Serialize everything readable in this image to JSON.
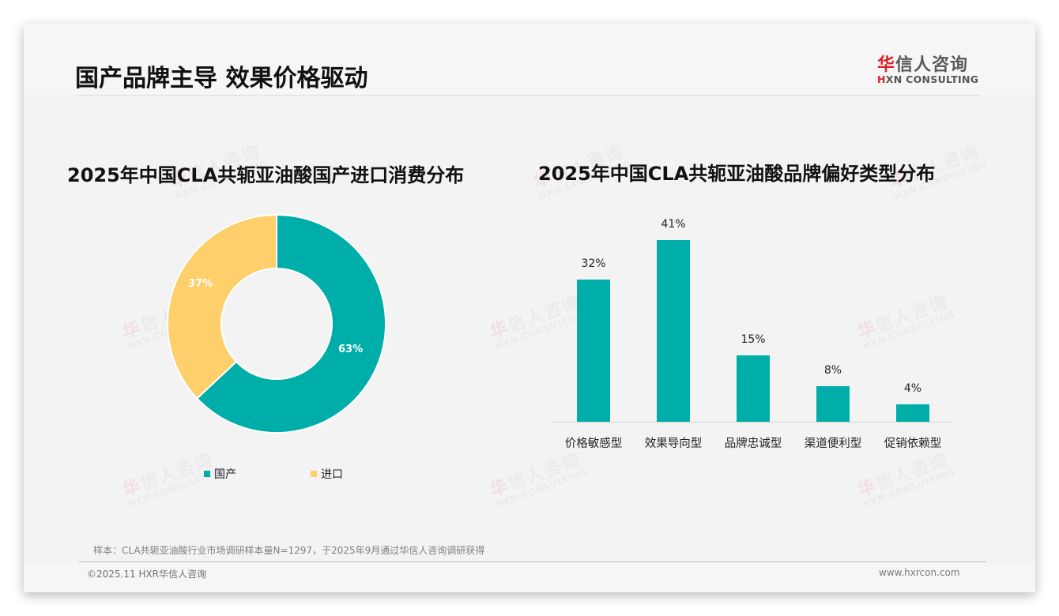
{
  "header": {
    "title": "国产品牌主导 效果价格驱动",
    "logo": {
      "cn_first": "华",
      "cn_rest": "信人咨询",
      "en_first": "H",
      "en_rest": "XN CONSULTING"
    }
  },
  "watermark": {
    "cn_first": "华",
    "cn_rest": "信人咨询",
    "en": "HXN CONSULTING"
  },
  "colors": {
    "teal": "#00aea9",
    "yellow": "#fecf6a",
    "logo_red": "#d9232a"
  },
  "chart_data": [
    {
      "type": "pie",
      "title": "2025年中国CLA共轭亚油酸国产进口消费分布",
      "donut": true,
      "categories": [
        "国产",
        "进口"
      ],
      "values": [
        63,
        37
      ],
      "labels": [
        "63%",
        "37%"
      ],
      "colors": [
        "#00aea9",
        "#fecf6a"
      ],
      "legend_position": "bottom"
    },
    {
      "type": "bar",
      "title": "2025年中国CLA共轭亚油酸品牌偏好类型分布",
      "categories": [
        "价格敏感型",
        "效果导向型",
        "品牌忠诚型",
        "渠道便利型",
        "促销依赖型"
      ],
      "values": [
        32,
        41,
        15,
        8,
        4
      ],
      "labels": [
        "32%",
        "41%",
        "15%",
        "8%",
        "4%"
      ],
      "xlabel": "",
      "ylabel": "",
      "grid": false,
      "color": "#00aea9"
    }
  ],
  "footer": {
    "note": "样本：CLA共轭亚油酸行业市场调研样本量N=1297，于2025年9月通过华信人咨询调研获得",
    "copyright": "©2025.11 HXR华信人咨询",
    "site": "www.hxrcon.com"
  }
}
